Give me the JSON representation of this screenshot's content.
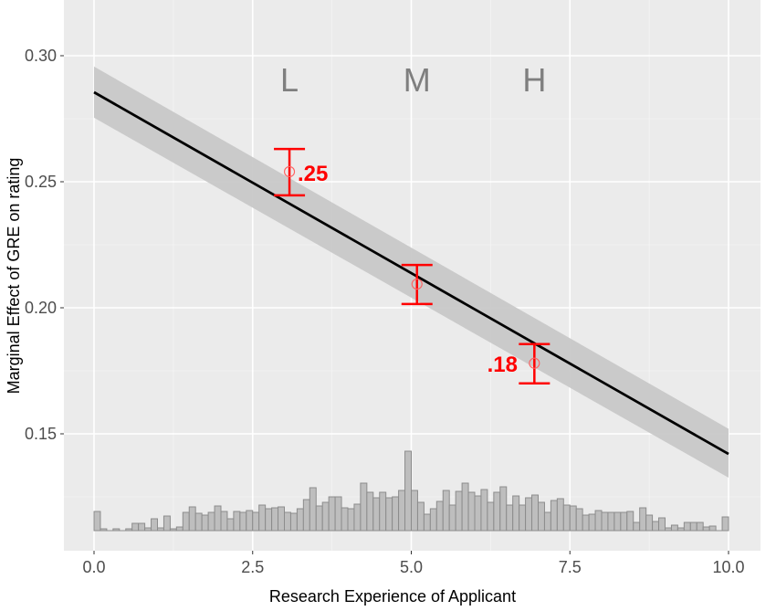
{
  "chart_data": {
    "type": "line",
    "title": "",
    "xlabel": "Research Experience of Applicant",
    "ylabel": "Marginal Effect of GRE on rating",
    "xlim": [
      -0.5,
      10.4
    ],
    "ylim": [
      0.105,
      0.32
    ],
    "x_ticks": [
      0.0,
      2.5,
      5.0,
      7.5,
      10.0
    ],
    "x_tick_labels": [
      "0.0",
      "2.5",
      "5.0",
      "7.5",
      "10.0"
    ],
    "y_ticks": [
      0.15,
      0.2,
      0.25,
      0.3
    ],
    "y_tick_labels": [
      "0.15",
      "0.20",
      "0.25",
      "0.30"
    ],
    "grid": true,
    "legend": null,
    "series": [
      {
        "name": "marginal effect (fitted line)",
        "type": "line",
        "x": [
          0,
          10
        ],
        "y": [
          0.2855,
          0.142
        ],
        "color": "#000000"
      },
      {
        "name": "95% confidence band",
        "type": "area",
        "x": [
          0,
          10
        ],
        "upper": [
          0.2957,
          0.152
        ],
        "lower": [
          0.2754,
          0.1326
        ],
        "color": "#c8c8c8"
      },
      {
        "name": "binned estimates",
        "type": "errorbar",
        "color": "#ff0000",
        "points": [
          {
            "group": "L",
            "x": 3.08,
            "y": 0.254,
            "ymin": 0.2446,
            "ymax": 0.263,
            "label": ".25"
          },
          {
            "group": "M",
            "x": 5.09,
            "y": 0.2094,
            "ymin": 0.2015,
            "ymax": 0.217,
            "label": ""
          },
          {
            "group": "H",
            "x": 6.94,
            "y": 0.178,
            "ymin": 0.17,
            "ymax": 0.1856,
            "label": ".18"
          }
        ]
      },
      {
        "name": "distribution of research experience (histogram, relative heights in px)",
        "type": "histogram",
        "bin_start": 0.0,
        "bin_width": 0.1,
        "color": "#bebebe",
        "heights": [
          21,
          2,
          0,
          2,
          0,
          2,
          8,
          8,
          3,
          13,
          3,
          16,
          2,
          4,
          20,
          26,
          19,
          17,
          20,
          27,
          21,
          13,
          21,
          20,
          22,
          20,
          28,
          24,
          25,
          26,
          20,
          19,
          24,
          34,
          47,
          27,
          31,
          37,
          37,
          25,
          24,
          29,
          52,
          42,
          36,
          42,
          36,
          37,
          44,
          87,
          44,
          31,
          18,
          24,
          32,
          44,
          28,
          43,
          52,
          42,
          38,
          45,
          31,
          42,
          48,
          28,
          38,
          28,
          36,
          39,
          31,
          20,
          33,
          35,
          28,
          27,
          24,
          17,
          18,
          22,
          20,
          20,
          20,
          20,
          21,
          9,
          25,
          17,
          10,
          14,
          3,
          6,
          3,
          9,
          9,
          9,
          4,
          5,
          0,
          15
        ]
      }
    ],
    "annotations": [
      {
        "text": "L",
        "x": 3.08,
        "y": 0.29
      },
      {
        "text": "M",
        "x": 5.09,
        "y": 0.29
      },
      {
        "text": "H",
        "x": 6.94,
        "y": 0.29
      },
      {
        "text": ".25",
        "x": 3.4,
        "y": 0.254,
        "color": "#ff0000"
      },
      {
        "text": ".18",
        "x": 6.3,
        "y": 0.178,
        "color": "#ff0000"
      }
    ]
  },
  "colors": {
    "panel_bg": "#ebebeb",
    "grid_major": "#ffffff",
    "ribbon": "#c8c8c8",
    "line": "#000000",
    "errorbar": "#ff0000",
    "hist_fill": "#bebebe",
    "hist_stroke": "#8c8c8c"
  }
}
